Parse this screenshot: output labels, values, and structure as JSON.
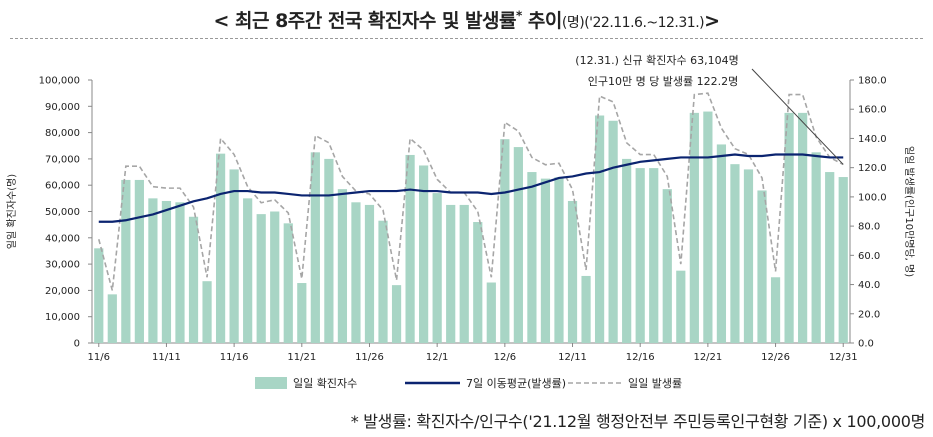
{
  "title": {
    "main": "< 최근 8주간 전국 확진자수 및 발생률",
    "star": "*",
    "main2": "추이",
    "paren": "(명)('22.11.6.~12.31.)",
    "close": ">"
  },
  "footnote": "* 발생률: 확진자수/인구수('21.12월 행정안전부 주민등록인구현황 기준) x 100,000명",
  "chart_data": {
    "type": "bar",
    "x_tick_labels": [
      "11/6",
      "11/11",
      "11/16",
      "11/21",
      "11/26",
      "12/1",
      "12/6",
      "12/11",
      "12/16",
      "12/21",
      "12/26",
      "12/31"
    ],
    "left_axis": {
      "label": "일일 확진자수(명)",
      "ylim": [
        0,
        100000
      ],
      "ticks": [
        "0",
        "10,000",
        "20,000",
        "30,000",
        "40,000",
        "50,000",
        "60,000",
        "70,000",
        "80,000",
        "90,000",
        "100,000"
      ]
    },
    "right_axis": {
      "label": "일일 발생률(인구10만명당, 명)",
      "ylim": [
        0,
        180
      ],
      "ticks": [
        "0.0",
        "20.0",
        "40.0",
        "60.0",
        "80.0",
        "100.0",
        "120.0",
        "140.0",
        "160.0",
        "180.0"
      ]
    },
    "annotation": [
      "(12.31.) 신규 확진자수 63,104명",
      "인구10만 명 당 발생률 122.2명"
    ],
    "series": [
      {
        "name": "일일 확진자수",
        "kind": "bar",
        "axis": "left",
        "color": "#a8d5c5",
        "values": [
          36000,
          18500,
          62000,
          62000,
          55000,
          54000,
          53500,
          48000,
          23500,
          72000,
          66000,
          55000,
          49000,
          50000,
          45500,
          22800,
          72500,
          70000,
          58500,
          53500,
          52500,
          46500,
          22000,
          71500,
          67500,
          57000,
          52500,
          52500,
          46000,
          23000,
          77500,
          74500,
          65000,
          62500,
          63000,
          54000,
          25500,
          86500,
          84500,
          70000,
          66500,
          66500,
          58500,
          27500,
          87500,
          88000,
          75500,
          68000,
          66000,
          58000,
          25000,
          87500,
          87500,
          72500,
          65000,
          63104
        ]
      },
      {
        "name": "7일 이동평균(발생률)",
        "kind": "line",
        "axis": "right",
        "color": "#0b2470",
        "values": [
          83,
          83,
          84,
          86,
          88,
          91,
          94,
          97,
          99,
          102,
          104,
          104,
          103,
          103,
          102,
          101,
          101,
          101,
          102,
          103,
          104,
          104,
          104,
          105,
          104,
          104,
          103,
          103,
          103,
          102,
          103,
          105,
          107,
          110,
          113,
          114,
          116,
          117,
          120,
          122,
          124,
          125,
          126,
          127,
          127,
          127,
          128,
          129,
          128,
          128,
          129,
          129,
          129,
          128,
          127,
          127
        ]
      },
      {
        "name": "일일 발생률",
        "kind": "dashed-line",
        "axis": "right",
        "color": "#a6a6a6",
        "values": [
          71,
          36,
          121,
          121,
          107,
          106,
          106,
          93,
          45,
          140,
          129,
          107,
          96,
          98,
          89,
          44,
          142,
          137,
          114,
          104,
          102,
          91,
          43,
          140,
          132,
          112,
          103,
          103,
          90,
          45,
          151,
          145,
          127,
          122,
          123,
          105,
          50,
          169,
          165,
          137,
          129,
          129,
          114,
          54,
          170,
          171,
          147,
          133,
          129,
          113,
          49,
          170,
          170,
          141,
          127,
          122.2
        ]
      }
    ],
    "grid": false,
    "legend_position": "bottom"
  }
}
